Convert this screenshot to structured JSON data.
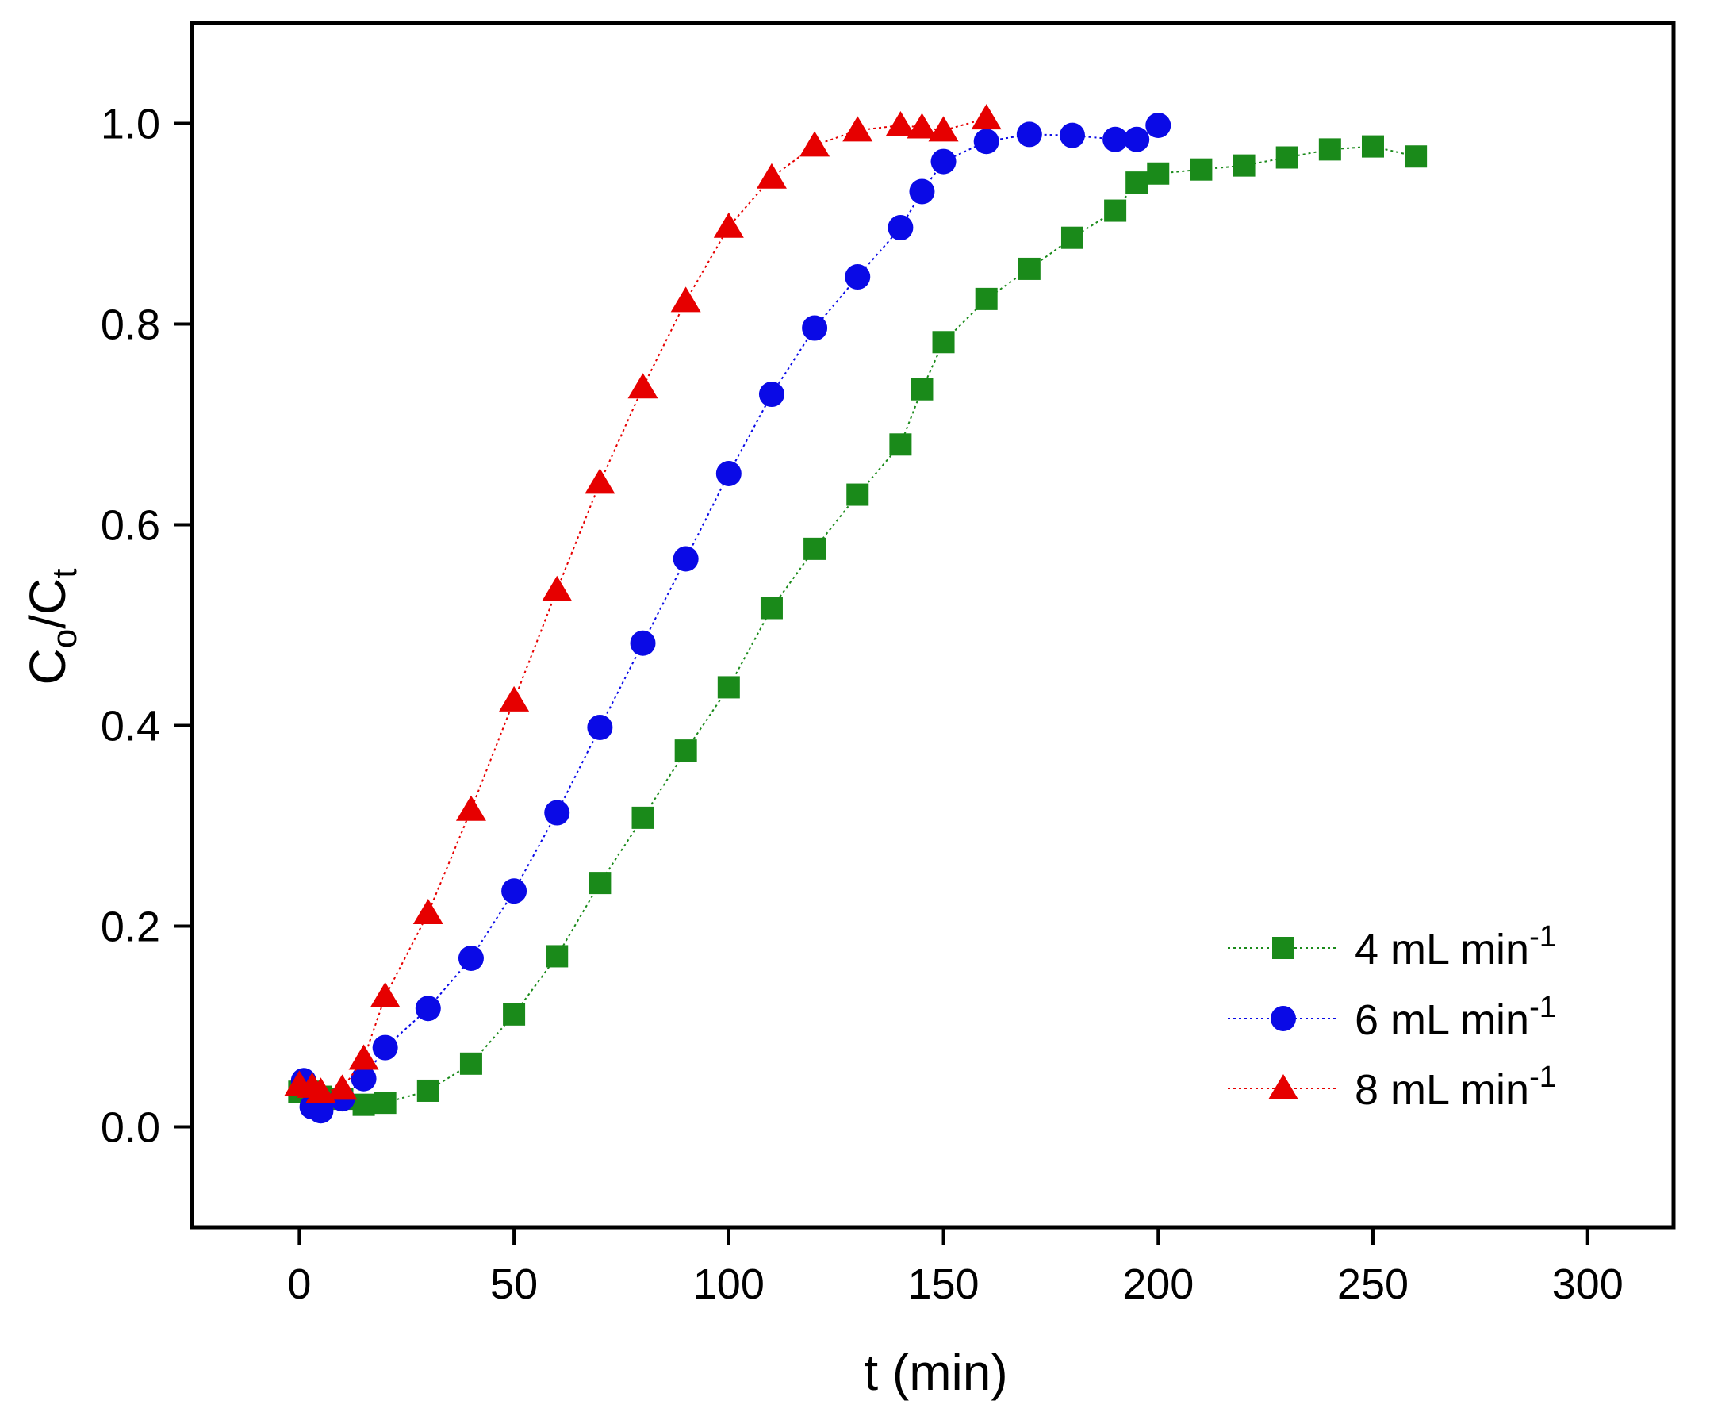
{
  "chart_data": {
    "type": "scatter",
    "title": "",
    "xlabel": "t (min)",
    "ylabel": {
      "main": "C",
      "sub1": "o",
      "mid": "/C",
      "sub2": "t"
    },
    "xlim": [
      -25,
      320
    ],
    "ylim": [
      -0.1,
      1.1
    ],
    "xticks": [
      0,
      50,
      100,
      150,
      200,
      250,
      300
    ],
    "yticks": [
      0.0,
      0.2,
      0.4,
      0.6,
      0.8,
      1.0
    ],
    "xtick_labels": [
      "0",
      "50",
      "100",
      "150",
      "200",
      "250",
      "300"
    ],
    "ytick_labels": [
      "0.0",
      "0.2",
      "0.4",
      "0.6",
      "0.8",
      "1.0"
    ],
    "legend_position": "bottom-right",
    "series": [
      {
        "name": "4 mL min",
        "name_sup": "-1",
        "marker": "square",
        "color": "#1a8a1a",
        "line_style": "dotted",
        "x": [
          0,
          2,
          5,
          10,
          15,
          20,
          30,
          40,
          50,
          60,
          70,
          80,
          90,
          100,
          110,
          120,
          130,
          140,
          145,
          150,
          160,
          170,
          180,
          190,
          195,
          200,
          210,
          220,
          230,
          240,
          250,
          260
        ],
        "y": [
          0.035,
          0.035,
          0.03,
          0.028,
          0.022,
          0.024,
          0.036,
          0.063,
          0.112,
          0.17,
          0.243,
          0.308,
          0.375,
          0.438,
          0.517,
          0.576,
          0.63,
          0.68,
          0.735,
          0.782,
          0.825,
          0.855,
          0.886,
          0.913,
          0.941,
          0.95,
          0.954,
          0.958,
          0.966,
          0.974,
          0.977,
          0.967
        ]
      },
      {
        "name": "6 mL min",
        "name_sup": "-1",
        "marker": "circle",
        "color": "#0a0ae6",
        "line_style": "dotted",
        "x": [
          1,
          3,
          5,
          10,
          15,
          20,
          30,
          40,
          50,
          60,
          70,
          80,
          90,
          100,
          110,
          120,
          130,
          140,
          145,
          150,
          160,
          170,
          180,
          190,
          195,
          200
        ],
        "y": [
          0.046,
          0.02,
          0.016,
          0.028,
          0.048,
          0.079,
          0.118,
          0.168,
          0.235,
          0.313,
          0.398,
          0.482,
          0.566,
          0.651,
          0.73,
          0.796,
          0.847,
          0.896,
          0.932,
          0.962,
          0.982,
          0.989,
          0.988,
          0.984,
          0.984,
          0.998
        ]
      },
      {
        "name": "8 mL min",
        "name_sup": "-1",
        "marker": "triangle",
        "color": "#e60000",
        "line_style": "dotted",
        "x": [
          0,
          3,
          5,
          10,
          15,
          20,
          30,
          40,
          50,
          60,
          70,
          80,
          90,
          100,
          110,
          120,
          130,
          140,
          145,
          150,
          160
        ],
        "y": [
          0.042,
          0.04,
          0.035,
          0.038,
          0.068,
          0.13,
          0.213,
          0.316,
          0.425,
          0.535,
          0.642,
          0.737,
          0.823,
          0.897,
          0.946,
          0.978,
          0.993,
          0.998,
          0.996,
          0.993,
          1.005
        ]
      }
    ]
  }
}
